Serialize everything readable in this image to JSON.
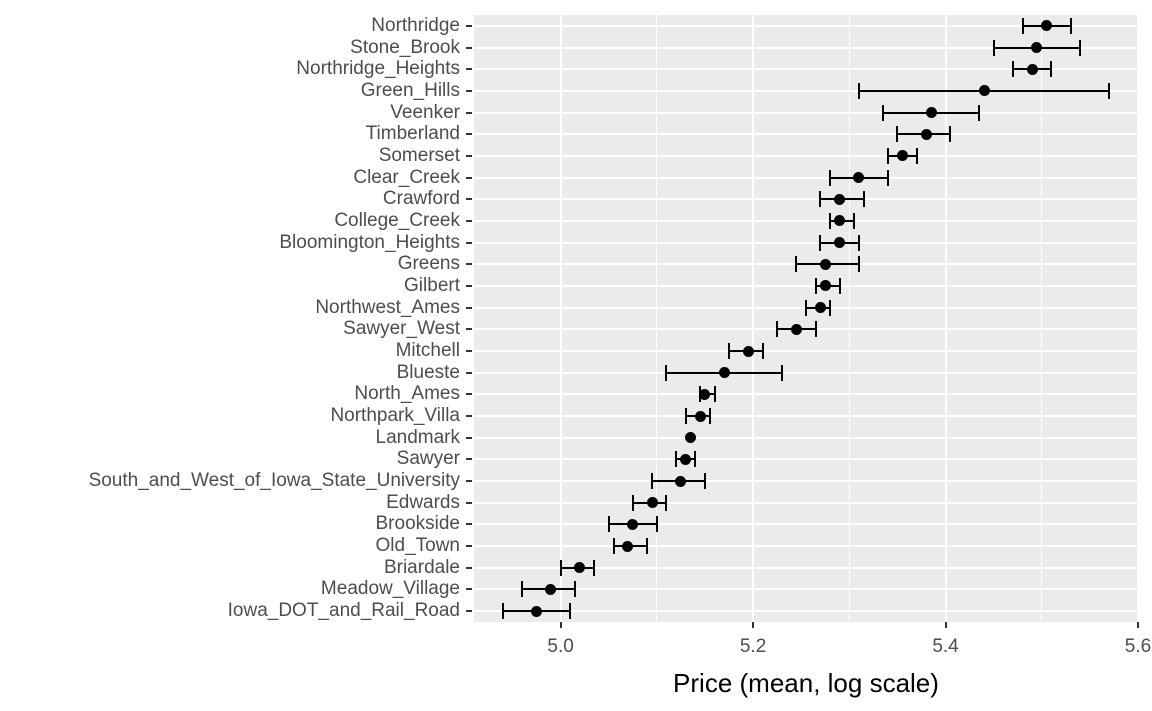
{
  "colors": {
    "panel_bg": "#ebebeb",
    "grid": "#ffffff",
    "point": "#000000",
    "axis_text": "#4d4d4d",
    "axis_title": "#000000",
    "tick_mark": "#333333"
  },
  "chart_data": {
    "type": "scatter",
    "title": "",
    "xlabel": "Price (mean, log scale)",
    "ylabel": "",
    "xlim": [
      4.91,
      5.6
    ],
    "x_major_ticks": [
      5.0,
      5.2,
      5.4,
      5.6
    ],
    "x_tick_labels": [
      "5.0",
      "5.2",
      "5.4",
      "5.6"
    ],
    "x_minor_ticks": [
      5.1,
      5.3,
      5.5
    ],
    "grid": "white major horizontal per category; white major+minor vertical on grey panel",
    "legend": "none",
    "marker": "filled black point with horizontal error bar and end caps",
    "categories": [
      "Northridge",
      "Stone_Brook",
      "Northridge_Heights",
      "Green_Hills",
      "Veenker",
      "Timberland",
      "Somerset",
      "Clear_Creek",
      "Crawford",
      "College_Creek",
      "Bloomington_Heights",
      "Greens",
      "Gilbert",
      "Northwest_Ames",
      "Sawyer_West",
      "Mitchell",
      "Blueste",
      "North_Ames",
      "Northpark_Villa",
      "Landmark",
      "Sawyer",
      "South_and_West_of_Iowa_State_University",
      "Edwards",
      "Brookside",
      "Old_Town",
      "Briardale",
      "Meadow_Village",
      "Iowa_DOT_and_Rail_Road"
    ],
    "series": [
      {
        "name": "mean",
        "values": [
          5.505,
          5.495,
          5.49,
          5.44,
          5.385,
          5.38,
          5.355,
          5.31,
          5.29,
          5.29,
          5.29,
          5.275,
          5.275,
          5.27,
          5.245,
          5.195,
          5.17,
          5.15,
          5.145,
          5.135,
          5.13,
          5.125,
          5.095,
          5.075,
          5.07,
          5.02,
          4.99,
          4.975
        ]
      },
      {
        "name": "ci_low",
        "values": [
          5.48,
          5.45,
          5.47,
          5.31,
          5.335,
          5.35,
          5.34,
          5.28,
          5.27,
          5.28,
          5.27,
          5.245,
          5.265,
          5.255,
          5.225,
          5.175,
          5.11,
          5.145,
          5.13,
          null,
          5.12,
          5.095,
          5.075,
          5.05,
          5.055,
          5.0,
          4.96,
          4.94
        ]
      },
      {
        "name": "ci_high",
        "values": [
          5.53,
          5.54,
          5.51,
          5.57,
          5.435,
          5.405,
          5.37,
          5.34,
          5.315,
          5.305,
          5.31,
          5.31,
          5.29,
          5.28,
          5.265,
          5.21,
          5.23,
          5.16,
          5.155,
          null,
          5.14,
          5.15,
          5.11,
          5.1,
          5.09,
          5.035,
          5.015,
          5.01
        ]
      }
    ],
    "note": "Landmark is drawn as a point only (no error bar)"
  }
}
